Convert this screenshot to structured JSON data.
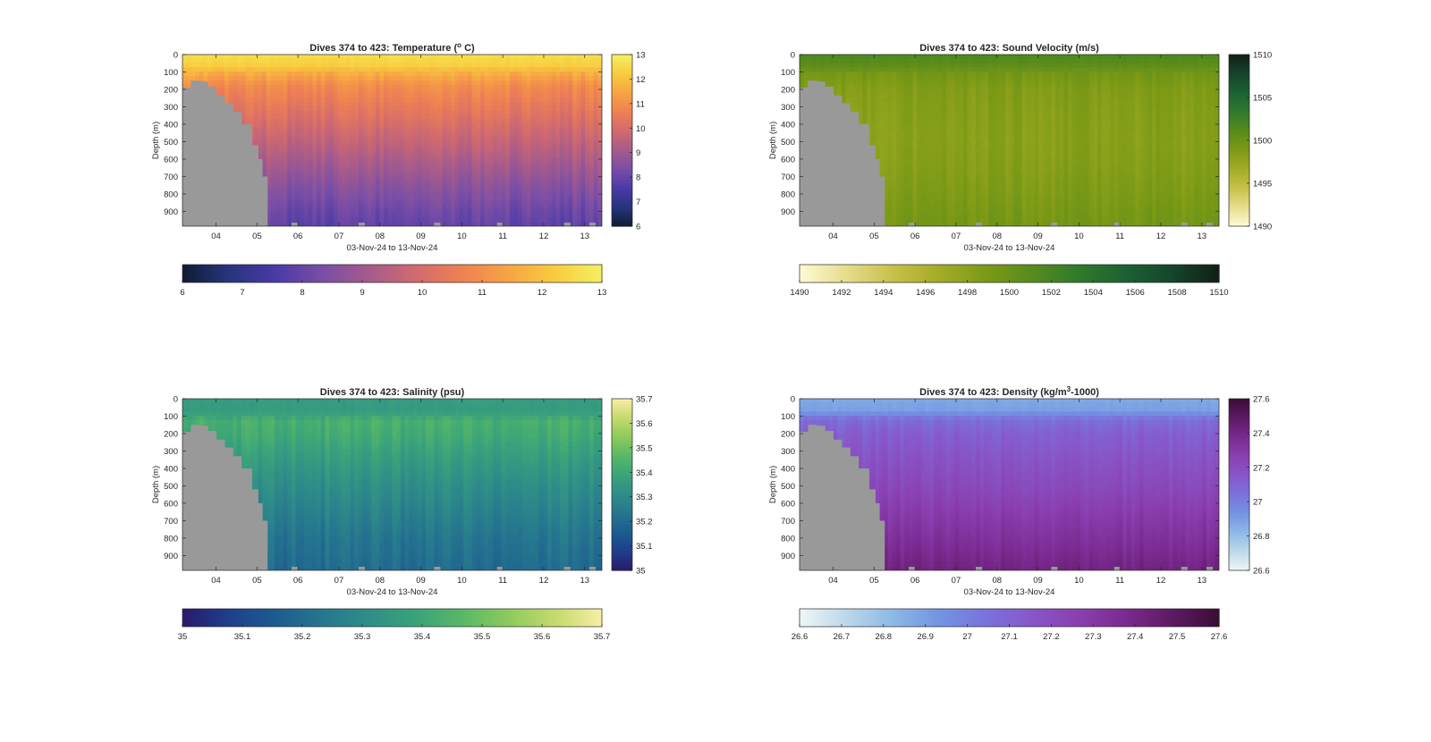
{
  "figure": {
    "background": "#ffffff",
    "land_color": "#999999"
  },
  "chart_data": [
    {
      "type": "heatmap",
      "title_parts": [
        "Dives 374 to 423: Temperature (",
        "o",
        " C)"
      ],
      "xlabel": "03-Nov-24 to 13-Nov-24",
      "ylabel": "Depth (m)",
      "x_ticks": [
        "04",
        "05",
        "06",
        "07",
        "08",
        "09",
        "10",
        "11",
        "12",
        "13"
      ],
      "x_tick_days": [
        4,
        5,
        6,
        7,
        8,
        9,
        10,
        11,
        12,
        13
      ],
      "xlim": [
        3.18,
        13.42
      ],
      "y_ticks": [
        "0",
        "100",
        "200",
        "300",
        "400",
        "500",
        "600",
        "700",
        "800",
        "900"
      ],
      "y_tick_values": [
        0,
        100,
        200,
        300,
        400,
        500,
        600,
        700,
        800,
        900
      ],
      "ylim": [
        0,
        985
      ],
      "y_reversed": true,
      "colorbar_ticks": [
        "6",
        "7",
        "8",
        "9",
        "10",
        "11",
        "12",
        "13"
      ],
      "colorbar_tick_values": [
        6,
        7,
        8,
        9,
        10,
        11,
        12,
        13
      ],
      "clim": [
        6,
        13
      ],
      "colormap": [
        "#0f1b33",
        "#27357f",
        "#4a3aa6",
        "#7a4ea6",
        "#a65b8b",
        "#d16a6e",
        "#ef8152",
        "#f7a443",
        "#f8cc3e",
        "#f4f062"
      ],
      "profile": [
        [
          0,
          12.6
        ],
        [
          60,
          12.3
        ],
        [
          110,
          11.6
        ],
        [
          180,
          10.9
        ],
        [
          300,
          10.4
        ],
        [
          450,
          9.8
        ],
        [
          600,
          9.2
        ],
        [
          750,
          8.6
        ],
        [
          900,
          8.1
        ],
        [
          985,
          7.9
        ]
      ],
      "column_variation": 0.25
    },
    {
      "type": "heatmap",
      "title_parts": [
        "Dives 374 to 423: Sound Velocity (m/s)"
      ],
      "xlabel": "03-Nov-24 to 13-Nov-24",
      "ylabel": "Depth (m)",
      "x_ticks": [
        "04",
        "05",
        "06",
        "07",
        "08",
        "09",
        "10",
        "11",
        "12",
        "13"
      ],
      "x_tick_days": [
        4,
        5,
        6,
        7,
        8,
        9,
        10,
        11,
        12,
        13
      ],
      "xlim": [
        3.18,
        13.42
      ],
      "y_ticks": [
        "0",
        "100",
        "200",
        "300",
        "400",
        "500",
        "600",
        "700",
        "800",
        "900"
      ],
      "y_tick_values": [
        0,
        100,
        200,
        300,
        400,
        500,
        600,
        700,
        800,
        900
      ],
      "ylim": [
        0,
        985
      ],
      "y_reversed": true,
      "colorbar_ticks": [
        "1490",
        "1492",
        "1494",
        "1496",
        "1498",
        "1500",
        "1502",
        "1504",
        "1506",
        "1508",
        "1510"
      ],
      "colorbar_tick_values": [
        1490,
        1492,
        1494,
        1496,
        1498,
        1500,
        1502,
        1504,
        1506,
        1508,
        1510
      ],
      "right_colorbar_ticks": [
        "1490",
        "1495",
        "1500",
        "1505",
        "1510"
      ],
      "right_colorbar_tick_values": [
        1490,
        1495,
        1500,
        1505,
        1510
      ],
      "clim": [
        1490,
        1510
      ],
      "colormap": [
        "#fefbd6",
        "#e6dc8c",
        "#c8c04a",
        "#a3ac25",
        "#7c9a16",
        "#578b1c",
        "#2f7a2c",
        "#1a6233",
        "#15452b",
        "#111f17"
      ],
      "profile": [
        [
          0,
          1501.5
        ],
        [
          50,
          1501.0
        ],
        [
          110,
          1499.4
        ],
        [
          200,
          1498.6
        ],
        [
          350,
          1498.3
        ],
        [
          500,
          1498.2
        ],
        [
          650,
          1498.4
        ],
        [
          800,
          1498.8
        ],
        [
          985,
          1499.4
        ]
      ],
      "column_variation": 0.55
    },
    {
      "type": "heatmap",
      "title_parts": [
        "Dives 374 to 423: Salinity (psu)"
      ],
      "xlabel": "03-Nov-24 to 13-Nov-24",
      "ylabel": "Depth (m)",
      "x_ticks": [
        "04",
        "05",
        "06",
        "07",
        "08",
        "09",
        "10",
        "11",
        "12",
        "13"
      ],
      "x_tick_days": [
        4,
        5,
        6,
        7,
        8,
        9,
        10,
        11,
        12,
        13
      ],
      "xlim": [
        3.18,
        13.42
      ],
      "y_ticks": [
        "0",
        "100",
        "200",
        "300",
        "400",
        "500",
        "600",
        "700",
        "800",
        "900"
      ],
      "y_tick_values": [
        0,
        100,
        200,
        300,
        400,
        500,
        600,
        700,
        800,
        900
      ],
      "ylim": [
        0,
        985
      ],
      "y_reversed": true,
      "colorbar_ticks": [
        "35",
        "35.1",
        "35.2",
        "35.3",
        "35.4",
        "35.5",
        "35.6",
        "35.7"
      ],
      "colorbar_tick_values": [
        35,
        35.1,
        35.2,
        35.3,
        35.4,
        35.5,
        35.6,
        35.7
      ],
      "clim": [
        35,
        35.7
      ],
      "colormap": [
        "#2a1a6b",
        "#1e3f8c",
        "#1d5c8f",
        "#26768f",
        "#2f8e88",
        "#3aa37a",
        "#58b866",
        "#8dca5d",
        "#c6d96d",
        "#f7efa3"
      ],
      "profile": [
        [
          0,
          35.36
        ],
        [
          70,
          35.36
        ],
        [
          130,
          35.43
        ],
        [
          220,
          35.41
        ],
        [
          350,
          35.36
        ],
        [
          500,
          35.31
        ],
        [
          650,
          35.27
        ],
        [
          800,
          35.23
        ],
        [
          985,
          35.2
        ]
      ],
      "column_variation": 0.03
    },
    {
      "type": "heatmap",
      "title_parts": [
        "Dives 374 to 423: Density (kg/m",
        "3",
        "-1000)"
      ],
      "xlabel": "03-Nov-24 to 13-Nov-24",
      "ylabel": "Depth (m)",
      "x_ticks": [
        "04",
        "05",
        "06",
        "07",
        "08",
        "09",
        "10",
        "11",
        "12",
        "13"
      ],
      "x_tick_days": [
        4,
        5,
        6,
        7,
        8,
        9,
        10,
        11,
        12,
        13
      ],
      "xlim": [
        3.18,
        13.42
      ],
      "y_ticks": [
        "0",
        "100",
        "200",
        "300",
        "400",
        "500",
        "600",
        "700",
        "800",
        "900"
      ],
      "y_tick_values": [
        0,
        100,
        200,
        300,
        400,
        500,
        600,
        700,
        800,
        900
      ],
      "ylim": [
        0,
        985
      ],
      "y_reversed": true,
      "colorbar_ticks": [
        "26.6",
        "26.7",
        "26.8",
        "26.9",
        "27",
        "27.1",
        "27.2",
        "27.3",
        "27.4",
        "27.5",
        "27.6"
      ],
      "colorbar_tick_values": [
        26.6,
        26.7,
        26.8,
        26.9,
        27,
        27.1,
        27.2,
        27.3,
        27.4,
        27.5,
        27.6
      ],
      "right_colorbar_ticks": [
        "26.6",
        "26.8",
        "27",
        "27.2",
        "27.4",
        "27.6"
      ],
      "right_colorbar_tick_values": [
        26.6,
        26.8,
        27,
        27.2,
        27.4,
        27.6
      ],
      "clim": [
        26.6,
        27.6
      ],
      "colormap": [
        "#eef6f6",
        "#bcd8ea",
        "#8db9e6",
        "#7294e2",
        "#7a72db",
        "#8856c8",
        "#8a3fb0",
        "#7a2a8f",
        "#5d1a63",
        "#3a0c36"
      ],
      "profile": [
        [
          0,
          26.87
        ],
        [
          70,
          26.9
        ],
        [
          120,
          27.06
        ],
        [
          200,
          27.12
        ],
        [
          350,
          27.17
        ],
        [
          500,
          27.22
        ],
        [
          650,
          27.28
        ],
        [
          800,
          27.34
        ],
        [
          985,
          27.42
        ]
      ],
      "column_variation": 0.03
    }
  ]
}
